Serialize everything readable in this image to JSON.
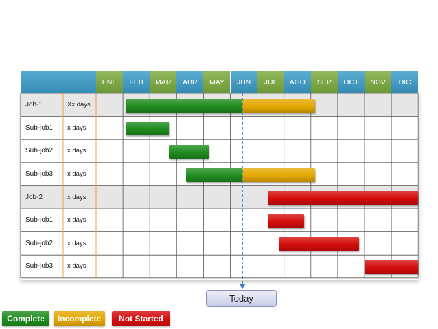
{
  "months": [
    "ENE",
    "FEB",
    "MAR",
    "ABR",
    "MAY",
    "JUN",
    "JUL",
    "AGO",
    "SEP",
    "OCT",
    "NOV",
    "DIC"
  ],
  "rows": [
    {
      "label": "Job-1",
      "days": "Xx days",
      "group": true
    },
    {
      "label": "Sub-job1",
      "days": "x days",
      "group": false
    },
    {
      "label": "Sub-job2",
      "days": "x days",
      "group": false
    },
    {
      "label": "Sub-job3",
      "days": "x days",
      "group": false
    },
    {
      "label": "Job-2",
      "days": "x days",
      "group": true
    },
    {
      "label": "Sub-job1",
      "days": "x days",
      "group": false
    },
    {
      "label": "Sub-job2",
      "days": "x days",
      "group": false
    },
    {
      "label": "Sub-job3",
      "days": "x days",
      "group": false
    }
  ],
  "tasks": [
    {
      "row": 0,
      "status": "complete",
      "start": 1.1,
      "end": 5.45
    },
    {
      "row": 0,
      "status": "incomplete",
      "start": 5.45,
      "end": 8.15
    },
    {
      "row": 1,
      "status": "complete",
      "start": 1.1,
      "end": 2.7
    },
    {
      "row": 2,
      "status": "complete",
      "start": 2.7,
      "end": 4.2
    },
    {
      "row": 3,
      "status": "complete",
      "start": 3.35,
      "end": 5.45
    },
    {
      "row": 3,
      "status": "incomplete",
      "start": 5.45,
      "end": 8.15
    },
    {
      "row": 4,
      "status": "not_started",
      "start": 6.4,
      "end": 12.0
    },
    {
      "row": 5,
      "status": "not_started",
      "start": 6.4,
      "end": 7.75
    },
    {
      "row": 6,
      "status": "not_started",
      "start": 6.8,
      "end": 9.8
    },
    {
      "row": 7,
      "status": "not_started",
      "start": 10.0,
      "end": 12.0
    }
  ],
  "today": {
    "label": "Today",
    "position": 5.45
  },
  "legend": [
    {
      "key": "complete",
      "label": "Complete"
    },
    {
      "key": "incomplete",
      "label": "Incomplete"
    },
    {
      "key": "not_started",
      "label": "Not Started"
    }
  ],
  "colors": {
    "complete": "#1f8c1f",
    "incomplete": "#e3a800",
    "not_started": "#d40d0d",
    "header_blue": "#3a9cc9",
    "header_green": "#7bab3c",
    "group_row": "#e6e6e6",
    "today_line": "#3a7dc9"
  }
}
